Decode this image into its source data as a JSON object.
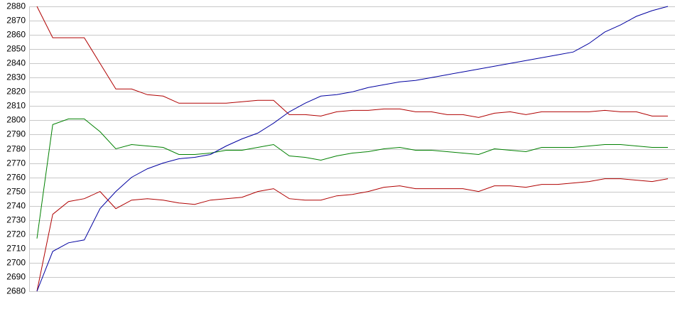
{
  "chart_data": {
    "type": "line",
    "categories": [
      null,
      null,
      null,
      null,
      null,
      null,
      null,
      null,
      null,
      null,
      null,
      null,
      null,
      null,
      null,
      null,
      null,
      null,
      null,
      null,
      null,
      null,
      null,
      null,
      null,
      null,
      null,
      null,
      null,
      null,
      null,
      null,
      null,
      null,
      null,
      null,
      null,
      null,
      null,
      null,
      null
    ],
    "series": [
      {
        "color": "#b00000",
        "values": [
          2880,
          2858,
          2858,
          2858,
          2840,
          2822,
          2822,
          2818,
          2817,
          2812,
          2812,
          2812,
          2812,
          2813,
          2814,
          2814,
          2804,
          2804,
          2803,
          2806,
          2807,
          2807,
          2808,
          2808,
          2806,
          2806,
          2804,
          2804,
          2802,
          2805,
          2806,
          2804,
          2806,
          2806,
          2806,
          2806,
          2807,
          2806,
          2806,
          2803,
          2803
        ]
      },
      {
        "color": "#008000",
        "values": [
          2717,
          2797,
          2801,
          2801,
          2792,
          2780,
          2783,
          2782,
          2781,
          2776,
          2776,
          2777,
          2779,
          2779,
          2781,
          2783,
          2775,
          2774,
          2772,
          2775,
          2777,
          2778,
          2780,
          2781,
          2779,
          2779,
          2778,
          2777,
          2776,
          2780,
          2779,
          2778,
          2781,
          2781,
          2781,
          2782,
          2783,
          2783,
          2782,
          2781,
          2781
        ]
      },
      {
        "color": "#b00000",
        "values": [
          2680,
          2734,
          2743,
          2745,
          2750,
          2738,
          2744,
          2745,
          2744,
          2742,
          2741,
          2744,
          2745,
          2746,
          2750,
          2752,
          2745,
          2744,
          2744,
          2747,
          2748,
          2750,
          2753,
          2754,
          2752,
          2752,
          2752,
          2752,
          2750,
          2754,
          2754,
          2753,
          2755,
          2755,
          2756,
          2757,
          2759,
          2759,
          2758,
          2757,
          2759
        ]
      },
      {
        "color": "#0000a0",
        "values": [
          2680,
          2708,
          2714,
          2716,
          2738,
          2750,
          2760,
          2766,
          2770,
          2773,
          2774,
          2776,
          2782,
          2787,
          2791,
          2798,
          2806,
          2812,
          2817,
          2818,
          2820,
          2823,
          2825,
          2827,
          2828,
          2830,
          2832,
          2834,
          2836,
          2838,
          2840,
          2842,
          2844,
          2846,
          2848,
          2854,
          2862,
          2867,
          2873,
          2877,
          2880
        ]
      }
    ],
    "ylim": [
      2680,
      2880
    ],
    "yticks": [
      2680,
      2690,
      2700,
      2710,
      2720,
      2730,
      2740,
      2750,
      2760,
      2770,
      2780,
      2790,
      2800,
      2810,
      2820,
      2830,
      2840,
      2850,
      2860,
      2870,
      2880
    ],
    "grid": true
  }
}
